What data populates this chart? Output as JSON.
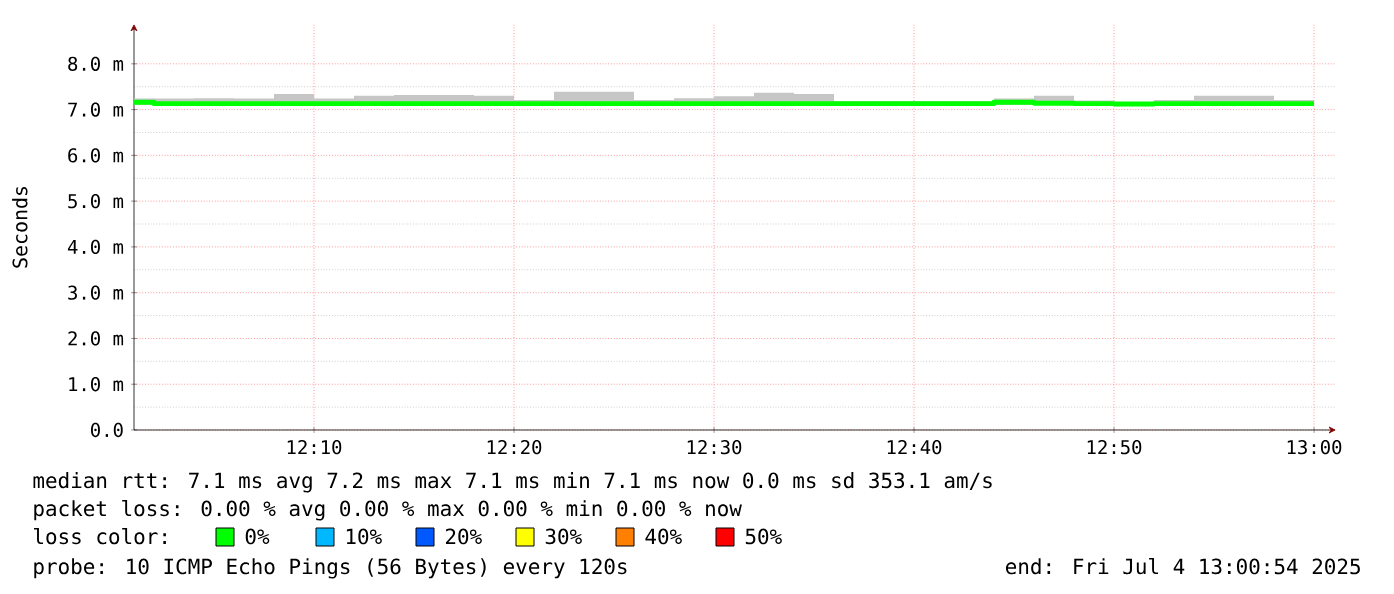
{
  "chart_data": {
    "type": "step",
    "ylabel": "Seconds",
    "legend_title": "loss color:",
    "x": [
      12.01667,
      12.03333,
      12.06667,
      12.1,
      12.13333,
      12.16667,
      12.2,
      12.23333,
      12.26667,
      12.3,
      12.33333,
      12.36667,
      12.4,
      12.43333,
      12.46667,
      12.5,
      12.53333,
      12.56667,
      12.6,
      12.63333,
      12.66667,
      12.7,
      12.73333,
      12.76667,
      12.8,
      12.83333,
      12.86667,
      12.9,
      12.93333,
      12.96667,
      13.0
    ],
    "series": [
      {
        "name": "0%",
        "color": "#00ff00",
        "values": [
          7.16,
          7.13,
          7.13,
          7.13,
          7.13,
          7.13,
          7.13,
          7.13,
          7.13,
          7.13,
          7.13,
          7.13,
          7.13,
          7.13,
          7.13,
          7.13,
          7.13,
          7.13,
          7.13,
          7.13,
          7.13,
          7.13,
          7.16,
          7.14,
          7.13,
          7.12,
          7.13,
          7.13,
          7.13,
          7.13,
          7.13
        ],
        "lower": [
          7.1,
          7.1,
          7.1,
          7.1,
          7.1,
          7.1,
          7.1,
          7.1,
          7.1,
          7.1,
          7.1,
          7.1,
          7.1,
          7.1,
          7.1,
          7.1,
          7.1,
          7.1,
          7.1,
          7.1,
          7.1,
          7.1,
          7.1,
          7.1,
          7.1,
          7.1,
          7.1,
          7.1,
          7.1,
          7.1,
          7.1
        ],
        "upper": [
          7.24,
          7.24,
          7.25,
          7.24,
          7.34,
          7.24,
          7.3,
          7.32,
          7.32,
          7.3,
          7.21,
          7.39,
          7.39,
          7.21,
          7.25,
          7.29,
          7.37,
          7.34,
          7.19,
          7.19,
          7.19,
          7.19,
          7.24,
          7.3,
          7.2,
          7.16,
          7.21,
          7.3,
          7.3,
          7.21,
          7.21
        ]
      },
      {
        "name": "10%",
        "color": "#00b8ff",
        "values": [
          null,
          null,
          null,
          null,
          null,
          null,
          null,
          null,
          null,
          null,
          null,
          null,
          null,
          null,
          null,
          null,
          null,
          null,
          null,
          null,
          null,
          null,
          null,
          null,
          null,
          null,
          null,
          null,
          null,
          null,
          null
        ]
      },
      {
        "name": "20%",
        "color": "#0059ff",
        "values": [
          null,
          null,
          null,
          null,
          null,
          null,
          null,
          null,
          null,
          null,
          null,
          null,
          null,
          null,
          null,
          null,
          null,
          null,
          null,
          null,
          null,
          null,
          null,
          null,
          null,
          null,
          null,
          null,
          null,
          null,
          null
        ]
      },
      {
        "name": "30%",
        "color": "#ffff00",
        "values": [
          null,
          null,
          null,
          null,
          null,
          null,
          null,
          null,
          null,
          null,
          null,
          null,
          null,
          null,
          null,
          null,
          null,
          null,
          null,
          null,
          null,
          null,
          null,
          null,
          null,
          null,
          null,
          null,
          null,
          null,
          null
        ]
      },
      {
        "name": "40%",
        "color": "#ff7f00",
        "values": [
          null,
          null,
          null,
          null,
          null,
          null,
          null,
          null,
          null,
          null,
          null,
          null,
          null,
          null,
          null,
          null,
          null,
          null,
          null,
          null,
          null,
          null,
          null,
          null,
          null,
          null,
          null,
          null,
          null,
          null,
          null
        ]
      },
      {
        "name": "50%",
        "color": "#ff0000",
        "values": [
          null,
          null,
          null,
          null,
          null,
          null,
          null,
          null,
          null,
          null,
          null,
          null,
          null,
          null,
          null,
          null,
          null,
          null,
          null,
          null,
          null,
          null,
          null,
          null,
          null,
          null,
          null,
          null,
          null,
          null,
          null
        ]
      }
    ],
    "xlim": [
      12.01667,
      13.01833
    ],
    "ylim": [
      0,
      8.87
    ],
    "xticks": [
      {
        "value": 12.16667,
        "label": "12:10"
      },
      {
        "value": 12.33333,
        "label": "12:20"
      },
      {
        "value": 12.5,
        "label": "12:30"
      },
      {
        "value": 12.66667,
        "label": "12:40"
      },
      {
        "value": 12.83333,
        "label": "12:50"
      },
      {
        "value": 13.0,
        "label": "13:00"
      }
    ],
    "yticks": [
      {
        "value": 0,
        "label": "0.0"
      },
      {
        "value": 1,
        "label": "1.0 m"
      },
      {
        "value": 2,
        "label": "2.0 m"
      },
      {
        "value": 3,
        "label": "3.0 m"
      },
      {
        "value": 4,
        "label": "4.0 m"
      },
      {
        "value": 5,
        "label": "5.0 m"
      },
      {
        "value": 6,
        "label": "6.0 m"
      },
      {
        "value": 7,
        "label": "7.0 m"
      },
      {
        "value": 8,
        "label": "8.0 m"
      }
    ],
    "grid": true,
    "legend": "bottom",
    "annotations": [
      "median rtt: 7.1 ms avg 7.2 ms max 7.1 ms min 7.1 ms now 0.0 ms sd 353.1 am/s",
      "packet loss: 0.00 % avg 0.00 % max 0.00 % min 0.00 % now",
      "probe: 10 ICMP Echo Pings (56 Bytes) every 120s",
      "end: Fri Jul 4 13:00:54 2025"
    ]
  }
}
